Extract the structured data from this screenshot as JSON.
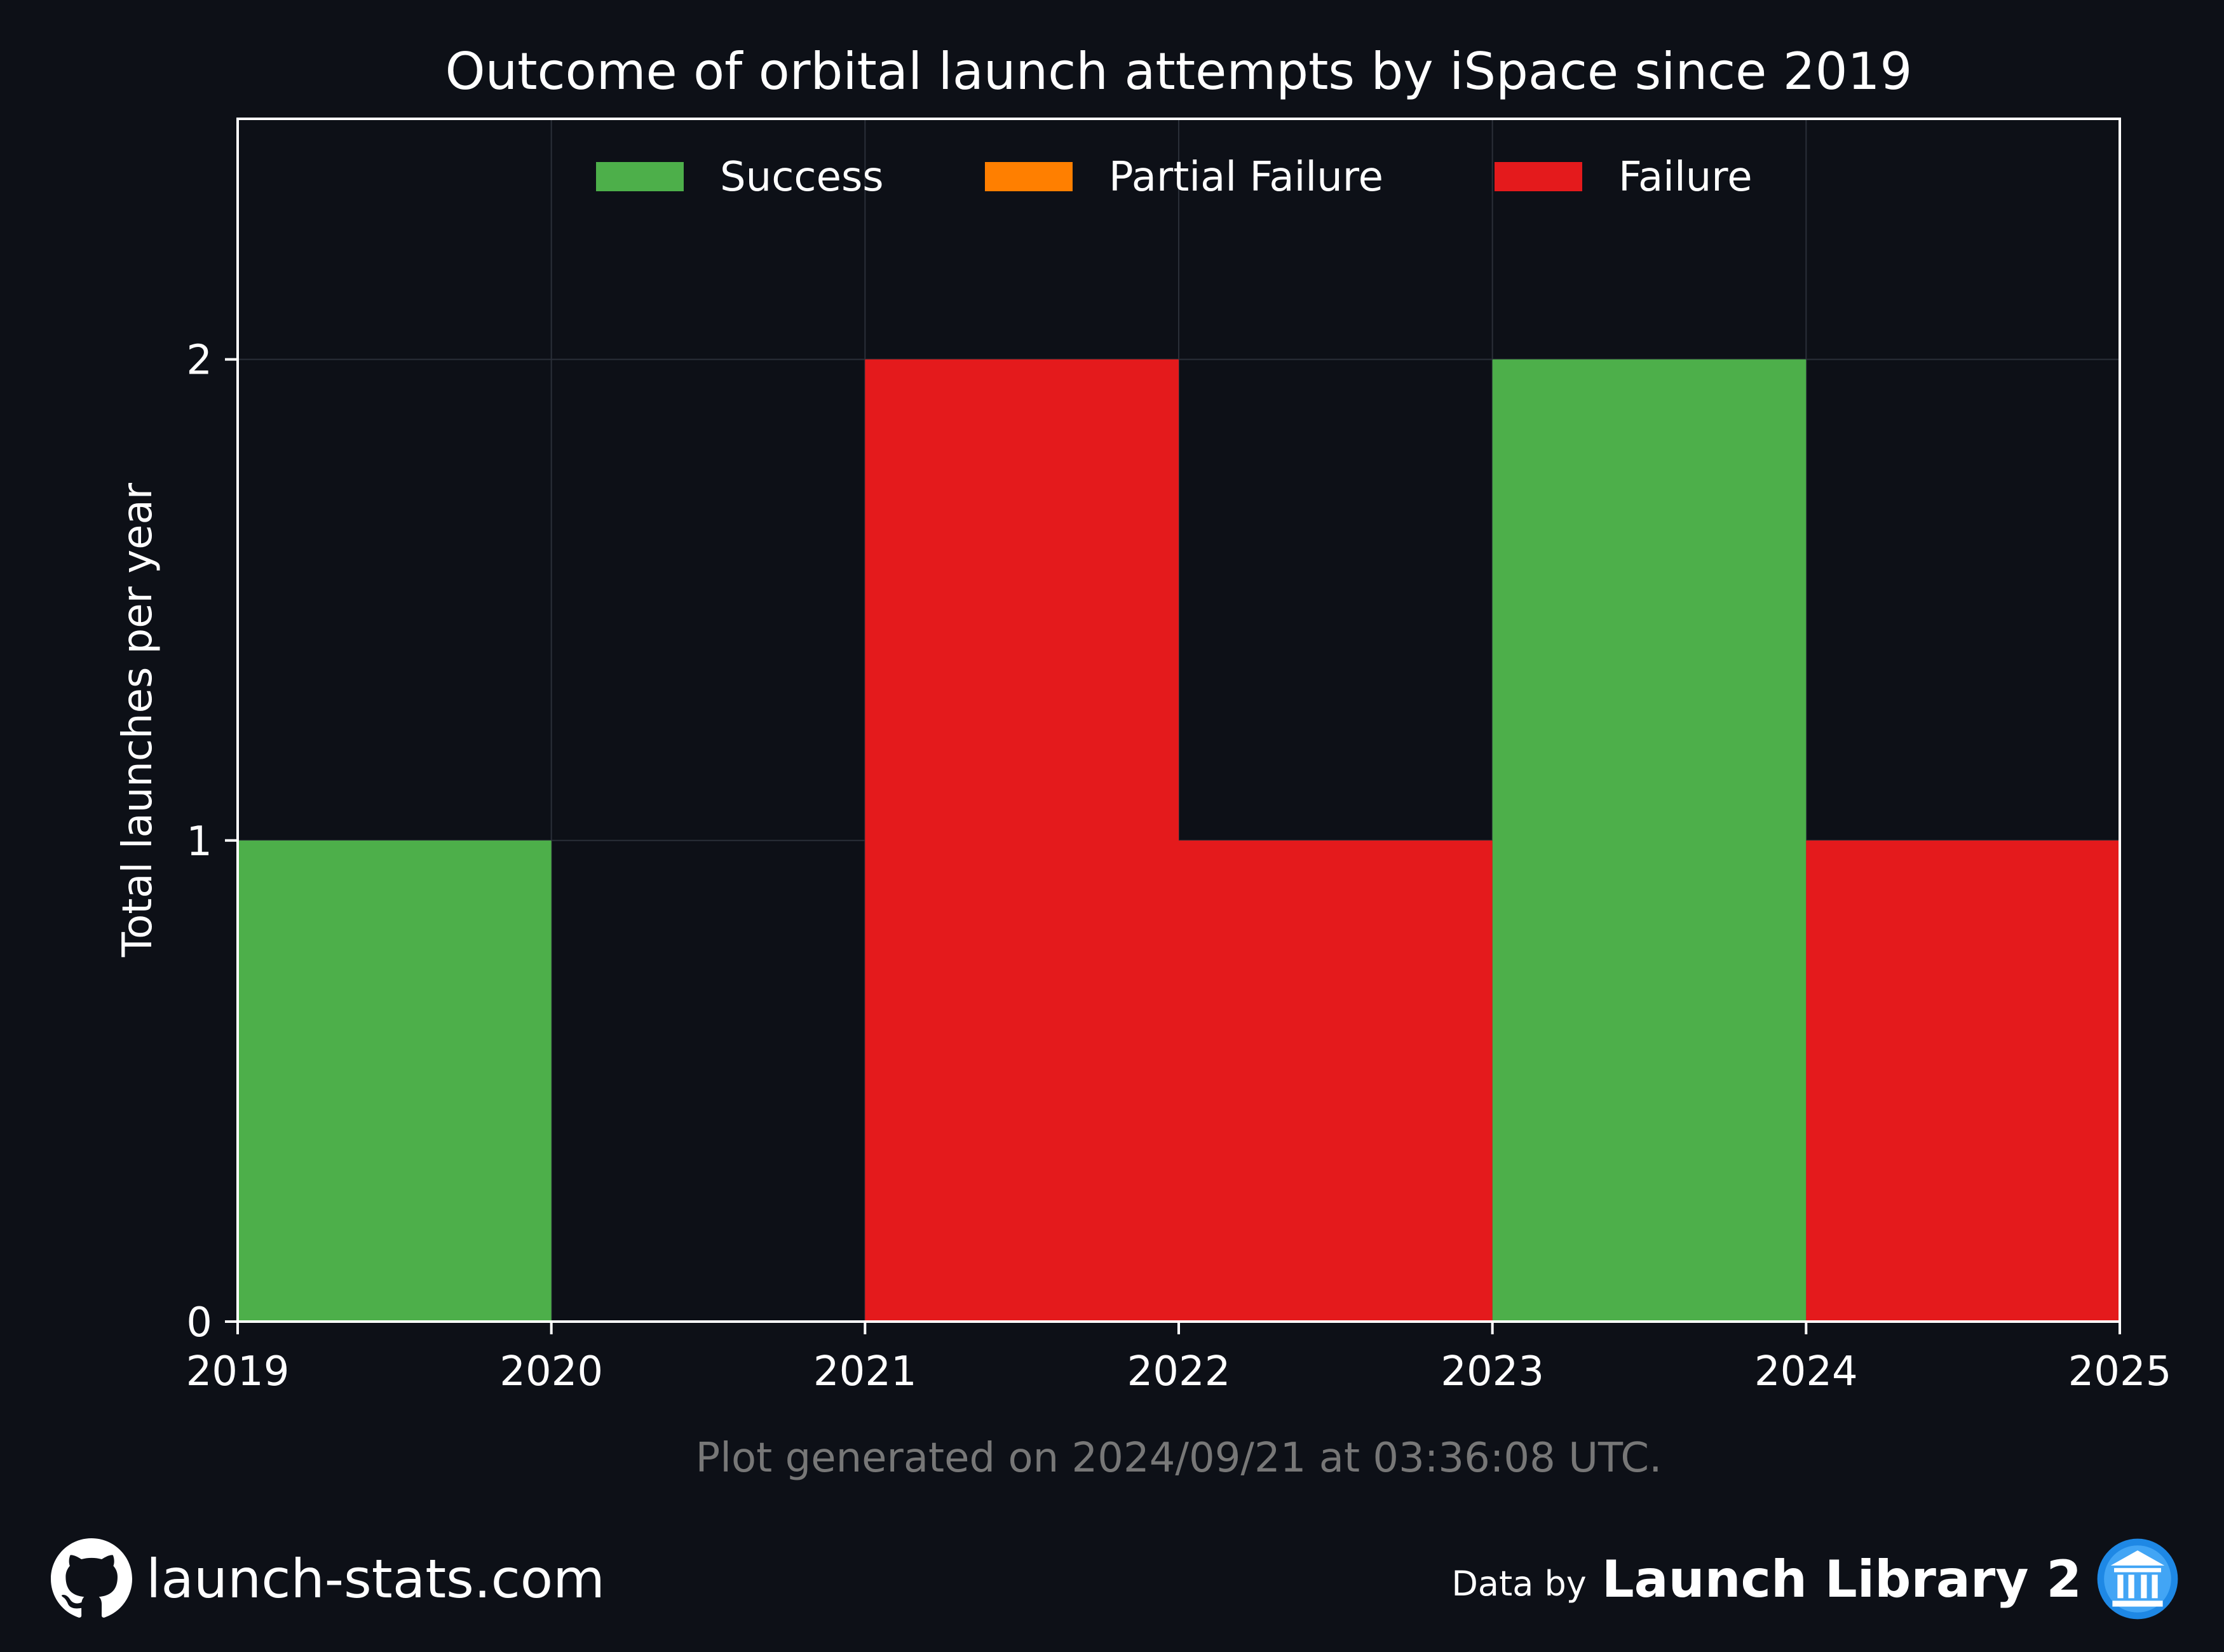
{
  "chart_data": {
    "type": "bar",
    "title": "Outcome of orbital launch attempts by iSpace since 2019",
    "ylabel": "Total launches per year",
    "xlabel": "",
    "x_ticks": [
      "2019",
      "2020",
      "2021",
      "2022",
      "2023",
      "2024",
      "2025"
    ],
    "y_ticks": [
      "0",
      "1",
      "2"
    ],
    "xlim": [
      2019,
      2025
    ],
    "ylim": [
      0,
      2.5
    ],
    "grid": true,
    "legend_position": "top-center",
    "stacked": true,
    "bins": [
      {
        "start": 2019,
        "end": 2020
      },
      {
        "start": 2020,
        "end": 2021
      },
      {
        "start": 2021,
        "end": 2022
      },
      {
        "start": 2022,
        "end": 2023
      },
      {
        "start": 2023,
        "end": 2024
      },
      {
        "start": 2024,
        "end": 2025
      }
    ],
    "series": [
      {
        "name": "Success",
        "color": "#4daf4a",
        "values": [
          1,
          0,
          0,
          0,
          2,
          0
        ]
      },
      {
        "name": "Partial Failure",
        "color": "#ff7f00",
        "values": [
          0,
          0,
          0,
          0,
          0,
          0
        ]
      },
      {
        "name": "Failure",
        "color": "#e41a1c",
        "values": [
          0,
          0,
          2,
          1,
          0,
          1
        ]
      }
    ],
    "footnote": "Plot generated on 2024/09/21 at 03:36:08 UTC."
  },
  "footer": {
    "site": "launch-stats.com",
    "site_icon": "github-icon",
    "data_by": "Data by",
    "source": "Launch Library 2",
    "source_icon": "launch-library-icon"
  },
  "colors": {
    "background": "#0d1017",
    "axes": "#ffffff",
    "grid": "#2a2f38",
    "footnote": "#777777"
  }
}
